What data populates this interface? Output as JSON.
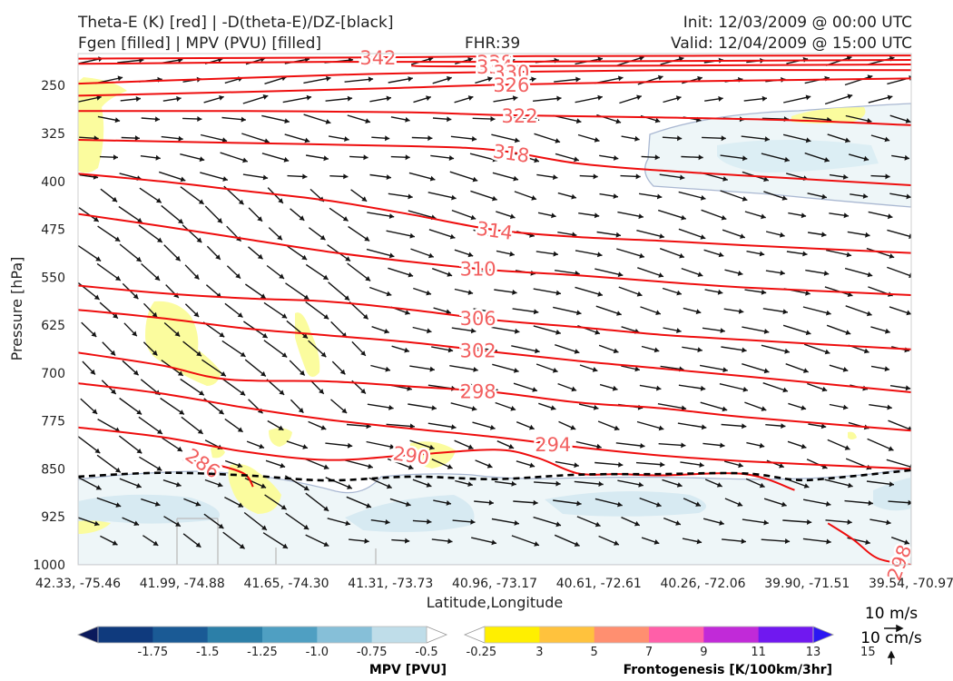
{
  "header": {
    "title_line1": "Theta-E (K) [red] | -D(theta-E)/DZ-[black]",
    "title_line2": "Fgen [filled] | MPV (PVU) [filled]",
    "fhr": "FHR:39",
    "init": "Init: 12/03/2009 @ 00:00 UTC",
    "valid": "Valid: 12/04/2009 @ 15:00 UTC"
  },
  "chart_data": {
    "type": "cross-section",
    "xlabel": "Latitude,Longitude",
    "ylabel": "Pressure [hPa]",
    "x_ticks": [
      "42.33, -75.46",
      "41.99, -74.88",
      "41.65, -74.30",
      "41.31, -73.73",
      "40.96, -73.17",
      "40.61, -72.61",
      "40.26, -72.06",
      "39.90, -71.51",
      "39.54, -70.97"
    ],
    "y_ticks": [
      250,
      325,
      400,
      475,
      550,
      625,
      700,
      775,
      850,
      925,
      1000
    ],
    "y_range": [
      200,
      1000
    ],
    "theta_e_contours": [
      {
        "value": 342,
        "label": "342",
        "points": [
          [
            0,
            208
          ],
          [
            0.35,
            206
          ],
          [
            0.55,
            204
          ],
          [
            1,
            203
          ]
        ]
      },
      {
        "value": 338,
        "label": "338",
        "points": [
          [
            0,
            216
          ],
          [
            0.3,
            213
          ],
          [
            0.48,
            213
          ],
          [
            1,
            210
          ]
        ]
      },
      {
        "value": 334,
        "label": "334",
        "points": [
          [
            0.4,
            219
          ],
          [
            0.48,
            220
          ],
          [
            1,
            217
          ]
        ]
      },
      {
        "value": 330,
        "label": "330",
        "points": [
          [
            0,
            247
          ],
          [
            0.2,
            238
          ],
          [
            0.35,
            232
          ],
          [
            0.5,
            229
          ],
          [
            0.7,
            226
          ],
          [
            1,
            226
          ]
        ]
      },
      {
        "value": 326,
        "label": "326",
        "points": [
          [
            0,
            266
          ],
          [
            0.2,
            260
          ],
          [
            0.38,
            254
          ],
          [
            0.5,
            249
          ],
          [
            0.7,
            244
          ],
          [
            1,
            239
          ]
        ]
      },
      {
        "value": 322,
        "label": "322",
        "points": [
          [
            0,
            290
          ],
          [
            0.2,
            290
          ],
          [
            0.4,
            292
          ],
          [
            0.5,
            296
          ],
          [
            0.7,
            300
          ],
          [
            0.85,
            304
          ],
          [
            1,
            312
          ]
        ]
      },
      {
        "value": 318,
        "label": "318",
        "points": [
          [
            0,
            335
          ],
          [
            0.2,
            340
          ],
          [
            0.4,
            345
          ],
          [
            0.5,
            351
          ],
          [
            0.6,
            372
          ],
          [
            0.7,
            383
          ],
          [
            0.8,
            391
          ],
          [
            1,
            406
          ]
        ]
      },
      {
        "value": 314,
        "label": "314",
        "points": [
          [
            0,
            388
          ],
          [
            0.1,
            400
          ],
          [
            0.2,
            415
          ],
          [
            0.3,
            430
          ],
          [
            0.4,
            452
          ],
          [
            0.5,
            476
          ],
          [
            0.6,
            487
          ],
          [
            0.7,
            493
          ],
          [
            0.8,
            500
          ],
          [
            1,
            512
          ]
        ]
      },
      {
        "value": 310,
        "label": "310",
        "points": [
          [
            0,
            451
          ],
          [
            0.1,
            470
          ],
          [
            0.2,
            490
          ],
          [
            0.3,
            510
          ],
          [
            0.4,
            526
          ],
          [
            0.5,
            539
          ],
          [
            0.6,
            547
          ],
          [
            0.7,
            557
          ],
          [
            0.8,
            566
          ],
          [
            1,
            578
          ]
        ]
      },
      {
        "value": 306,
        "label": "306",
        "points": [
          [
            0,
            563
          ],
          [
            0.1,
            575
          ],
          [
            0.2,
            583
          ],
          [
            0.3,
            588
          ],
          [
            0.4,
            601
          ],
          [
            0.5,
            617
          ],
          [
            0.6,
            628
          ],
          [
            0.7,
            640
          ],
          [
            0.8,
            648
          ],
          [
            1,
            663
          ]
        ]
      },
      {
        "value": 302,
        "label": "302",
        "points": [
          [
            0,
            601
          ],
          [
            0.1,
            614
          ],
          [
            0.2,
            630
          ],
          [
            0.3,
            641
          ],
          [
            0.4,
            652
          ],
          [
            0.5,
            667
          ],
          [
            0.6,
            681
          ],
          [
            0.7,
            693
          ],
          [
            0.8,
            705
          ],
          [
            1,
            730
          ]
        ]
      },
      {
        "value": 298,
        "label": "298",
        "points": [
          [
            0,
            668
          ],
          [
            0.1,
            688
          ],
          [
            0.18,
            710
          ],
          [
            0.3,
            713
          ],
          [
            0.4,
            721
          ],
          [
            0.5,
            730
          ],
          [
            0.6,
            746
          ],
          [
            0.7,
            755
          ],
          [
            0.8,
            769
          ],
          [
            1,
            790
          ]
        ]
      },
      {
        "value": 294,
        "label": "294",
        "points": [
          [
            0,
            716
          ],
          [
            0.1,
            732
          ],
          [
            0.2,
            754
          ],
          [
            0.3,
            773
          ],
          [
            0.4,
            787
          ],
          [
            0.5,
            800
          ],
          [
            0.6,
            816
          ],
          [
            0.7,
            829
          ],
          [
            0.8,
            838
          ],
          [
            1,
            850
          ]
        ]
      },
      {
        "value": 290,
        "label": "290",
        "points": [
          [
            0,
            785
          ],
          [
            0.1,
            800
          ],
          [
            0.2,
            823
          ],
          [
            0.3,
            836
          ],
          [
            0.4,
            828
          ],
          [
            0.5,
            820
          ],
          [
            0.55,
            832
          ],
          [
            0.6,
            857
          ],
          [
            0.65,
            858
          ],
          [
            0.7,
            860
          ],
          [
            0.8,
            858
          ],
          [
            0.86,
            883
          ]
        ]
      },
      {
        "value": 286,
        "label": "286",
        "points": [
          [
            0.13,
            836
          ],
          [
            0.17,
            845
          ],
          [
            0.2,
            858
          ],
          [
            0.21,
            878
          ]
        ]
      },
      {
        "value": 298,
        "label": "298",
        "points": [
          [
            0.9,
            935
          ],
          [
            0.93,
            960
          ],
          [
            0.96,
            990
          ],
          [
            1,
            1000
          ]
        ]
      }
    ],
    "stability_contour": {
      "style": "dashed",
      "points": [
        [
          0,
          862
        ],
        [
          0.1,
          856
        ],
        [
          0.2,
          860
        ],
        [
          0.3,
          868
        ],
        [
          0.4,
          862
        ],
        [
          0.5,
          866
        ],
        [
          0.6,
          859
        ],
        [
          0.7,
          858
        ],
        [
          0.8,
          857
        ],
        [
          0.86,
          867
        ],
        [
          0.9,
          865
        ],
        [
          1,
          852
        ]
      ]
    },
    "mpv_colorbar": {
      "title": "MPV [PVU]",
      "ticks": [
        "-1.75",
        "-1.5",
        "-1.25",
        "-1.0",
        "-0.75",
        "-0.5",
        "-0.25"
      ],
      "colors": [
        "#0b1a5c",
        "#0f3a7d",
        "#1a5a95",
        "#2c7fa8",
        "#4f9fc2",
        "#86bfd8",
        "#bfdde9",
        "#ffffff"
      ]
    },
    "fgen_colorbar": {
      "title": "Frontogenesis [K/100km/3hr]",
      "ticks": [
        "3",
        "5",
        "7",
        "9",
        "11",
        "13",
        "15"
      ],
      "colors": [
        "#ffffff",
        "#ffef00",
        "#ffc23d",
        "#ff8f70",
        "#ff5fa8",
        "#c12ad8",
        "#7018f0",
        "#2a17f2"
      ]
    },
    "reference_vectors": {
      "horizontal": "10 m/s",
      "vertical": "10 cm/s"
    }
  }
}
